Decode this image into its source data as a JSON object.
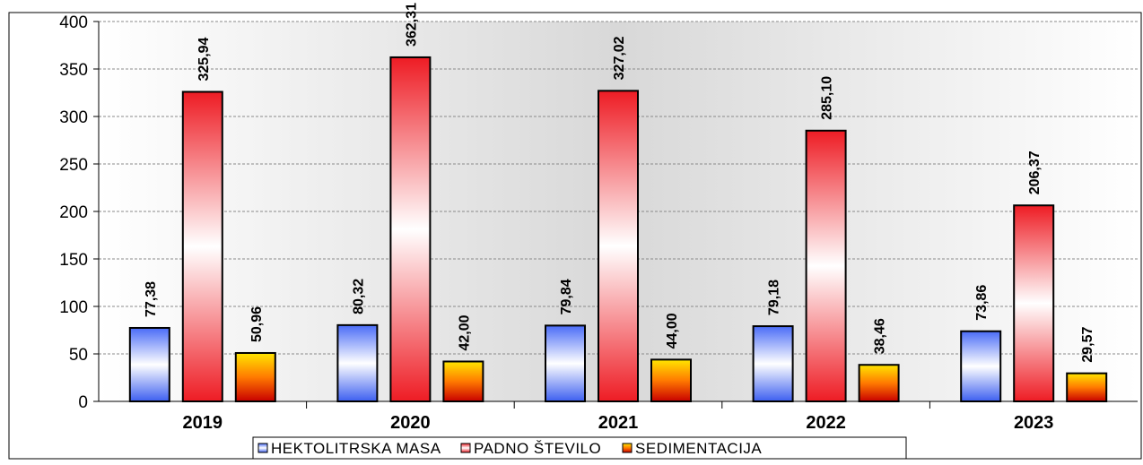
{
  "chart_data": {
    "type": "bar",
    "categories": [
      "2019",
      "2020",
      "2021",
      "2022",
      "2023"
    ],
    "series": [
      {
        "name": "HEKTOLITRSKA MASA",
        "values": [
          77.38,
          80.32,
          79.84,
          79.18,
          73.86
        ],
        "labels": [
          "77,38",
          "80,32",
          "79,84",
          "79,18",
          "73,86"
        ],
        "color": "#4a6cf7"
      },
      {
        "name": "PADNO ŠTEVILO",
        "values": [
          325.94,
          362.31,
          327.02,
          285.1,
          206.37
        ],
        "labels": [
          "325,94",
          "362,31",
          "327,02",
          "285,10",
          "206,37"
        ],
        "color": "#ee1c24"
      },
      {
        "name": "SEDIMENTACIJA",
        "values": [
          50.96,
          42.0,
          44.0,
          38.46,
          29.57
        ],
        "labels": [
          "50,96",
          "42,00",
          "44,00",
          "38,46",
          "29,57"
        ],
        "color": "#ff6a00"
      }
    ],
    "ylim": [
      0,
      400
    ],
    "yticks": [
      "0",
      "50",
      "100",
      "150",
      "200",
      "250",
      "300",
      "350",
      "400"
    ],
    "grid": true,
    "legend_position": "bottom",
    "title": "",
    "xlabel": "",
    "ylabel": ""
  }
}
